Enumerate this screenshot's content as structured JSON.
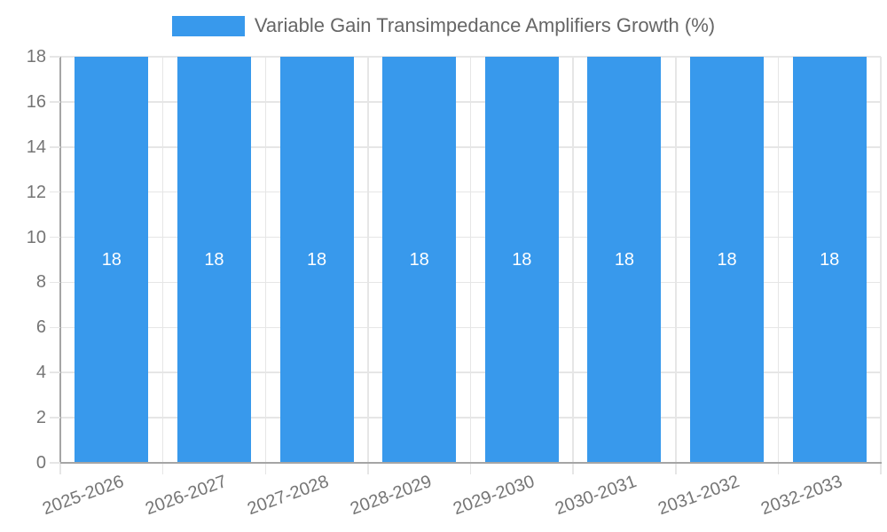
{
  "chart_data": {
    "type": "bar",
    "title": "Variable Gain Transimpedance Amplifiers Growth (%)",
    "categories": [
      "2025-2026",
      "2026-2027",
      "2027-2028",
      "2028-2029",
      "2029-2030",
      "2030-2031",
      "2031-2032",
      "2032-2033"
    ],
    "values": [
      18,
      18,
      18,
      18,
      18,
      18,
      18,
      18
    ],
    "bar_value_labels": [
      "18",
      "18",
      "18",
      "18",
      "18",
      "18",
      "18",
      "18"
    ],
    "y_tick_labels": [
      "0",
      "2",
      "4",
      "6",
      "8",
      "10",
      "12",
      "14",
      "16",
      "18"
    ],
    "xlabel": "",
    "ylabel": "",
    "ylim": [
      0,
      18
    ],
    "ytick_step": 2,
    "grid": true,
    "legend_position": "top",
    "colors": {
      "bar": "#3899ec",
      "bar_label": "#ffffff",
      "grid": "#e6e6e6",
      "axis": "#a5a5a5",
      "tick_text": "#757575",
      "title_text": "#666666",
      "background": "#ffffff"
    }
  }
}
